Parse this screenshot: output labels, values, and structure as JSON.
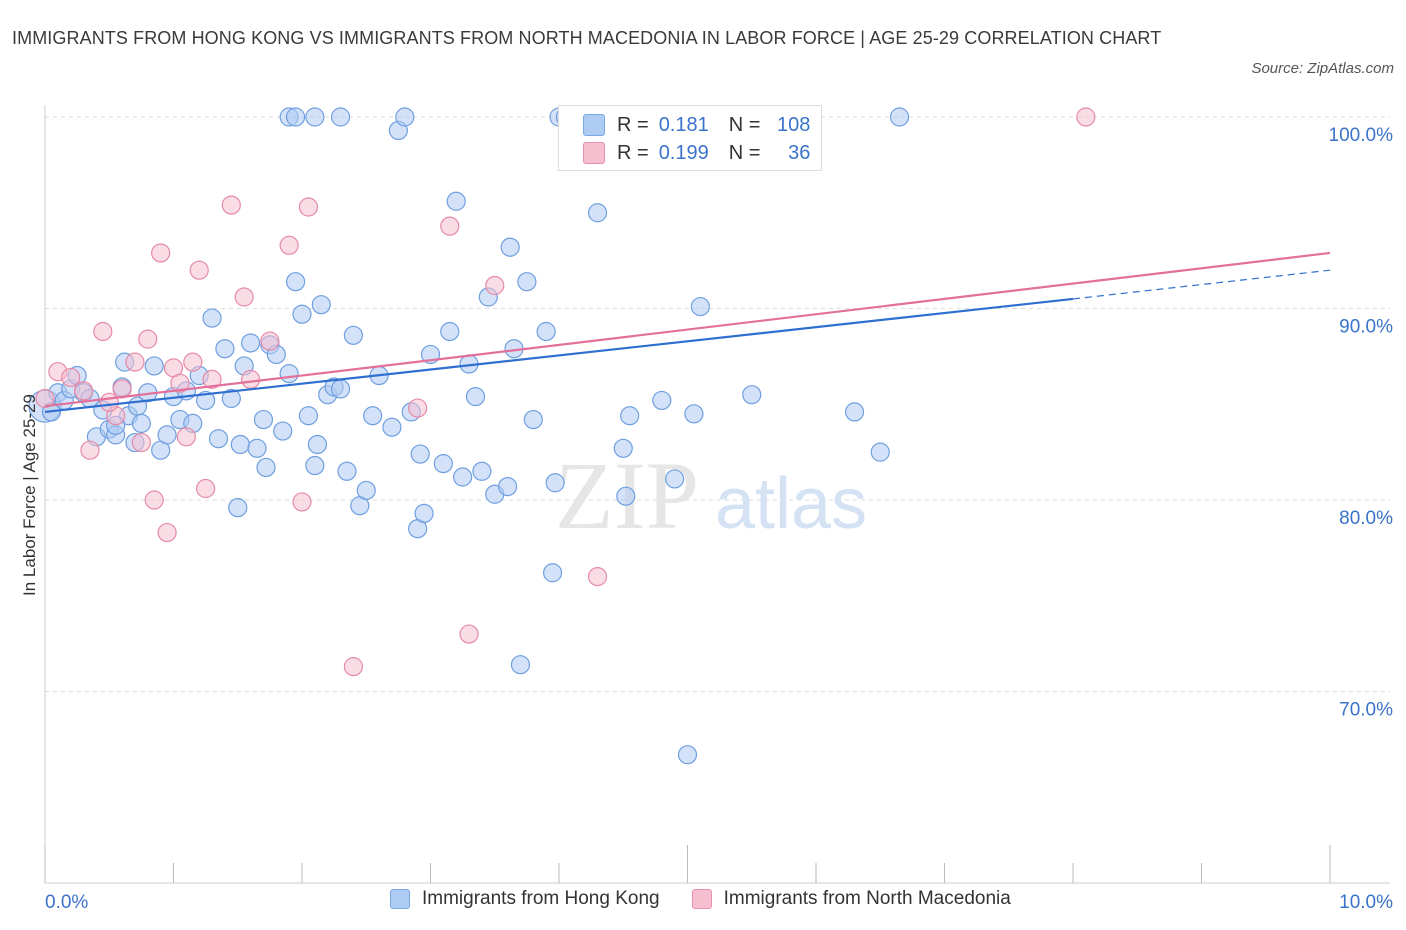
{
  "title": "IMMIGRANTS FROM HONG KONG VS IMMIGRANTS FROM NORTH MACEDONIA IN LABOR FORCE | AGE 25-29 CORRELATION CHART",
  "source": "Source: ZipAtlas.com",
  "watermark": {
    "zip": "ZIP",
    "atlas": "atlas"
  },
  "stats": [
    {
      "r_label": "R =",
      "r_value": "0.181",
      "n_label": "N =",
      "n_value": "108",
      "color": "#aecbf3",
      "border": "#7aa7e6"
    },
    {
      "r_label": "R =",
      "r_value": "0.199",
      "n_label": "N =",
      "n_value": "36",
      "color": "#f6bfcf",
      "border": "#e890ad"
    }
  ],
  "chart_data": {
    "type": "scatter",
    "title": "IMMIGRANTS FROM HONG KONG VS IMMIGRANTS FROM NORTH MACEDONIA IN LABOR FORCE | AGE 25-29 CORRELATION CHART",
    "xlabel": "",
    "ylabel": "In Labor Force | Age 25-29",
    "xlim": [
      0,
      10
    ],
    "ylim": [
      60,
      100
    ],
    "x_tick_labels": [
      "0.0%",
      "10.0%"
    ],
    "y_ticks": [
      70,
      80,
      90,
      100
    ],
    "y_tick_labels": [
      "70.0%",
      "80.0%",
      "90.0%",
      "100.0%"
    ],
    "grid": true,
    "legend_position": "bottom-center",
    "series": [
      {
        "name": "Immigrants from Hong Kong",
        "color": "#aecbf3",
        "stroke": "#6f9fe0",
        "trend": {
          "x0": 0.0,
          "y0": 84.6,
          "x1": 8.0,
          "y1": 90.5,
          "dash_to": 10.0,
          "dash_y": 92.0,
          "color": "#2f6fd0"
        },
        "points": [
          [
            0.0,
            84.9
          ],
          [
            0.05,
            84.6
          ],
          [
            0.1,
            85.6
          ],
          [
            0.15,
            85.2
          ],
          [
            0.2,
            85.8
          ],
          [
            0.25,
            86.5
          ],
          [
            0.3,
            85.6
          ],
          [
            0.35,
            85.3
          ],
          [
            0.4,
            83.3
          ],
          [
            0.45,
            84.7
          ],
          [
            0.5,
            83.7
          ],
          [
            0.55,
            83.4
          ],
          [
            0.6,
            85.9
          ],
          [
            0.62,
            87.2
          ],
          [
            0.65,
            84.4
          ],
          [
            0.7,
            83.0
          ],
          [
            0.72,
            84.9
          ],
          [
            0.75,
            84.0
          ],
          [
            0.8,
            85.6
          ],
          [
            0.85,
            87.0
          ],
          [
            0.9,
            82.6
          ],
          [
            0.95,
            83.4
          ],
          [
            1.0,
            85.4
          ],
          [
            1.05,
            84.2
          ],
          [
            1.1,
            85.7
          ],
          [
            1.15,
            84.0
          ],
          [
            1.2,
            86.5
          ],
          [
            1.25,
            85.2
          ],
          [
            1.3,
            89.5
          ],
          [
            1.35,
            83.2
          ],
          [
            1.4,
            87.9
          ],
          [
            1.45,
            85.3
          ],
          [
            1.5,
            79.6
          ],
          [
            1.52,
            82.9
          ],
          [
            1.55,
            87.0
          ],
          [
            1.6,
            88.2
          ],
          [
            1.65,
            82.7
          ],
          [
            1.7,
            84.2
          ],
          [
            1.72,
            81.7
          ],
          [
            1.75,
            88.1
          ],
          [
            1.8,
            87.6
          ],
          [
            1.85,
            83.6
          ],
          [
            1.9,
            86.6
          ],
          [
            1.95,
            91.4
          ],
          [
            2.0,
            89.7
          ],
          [
            2.05,
            84.4
          ],
          [
            2.1,
            81.8
          ],
          [
            2.12,
            82.9
          ],
          [
            2.15,
            90.2
          ],
          [
            2.2,
            85.5
          ],
          [
            2.25,
            85.9
          ],
          [
            2.3,
            85.8
          ],
          [
            2.35,
            81.5
          ],
          [
            2.4,
            88.6
          ],
          [
            2.45,
            79.7
          ],
          [
            2.5,
            80.5
          ],
          [
            2.55,
            84.4
          ],
          [
            2.6,
            86.5
          ],
          [
            2.7,
            83.8
          ],
          [
            2.75,
            99.3
          ],
          [
            2.8,
            100.0
          ],
          [
            2.85,
            84.6
          ],
          [
            2.9,
            78.5
          ],
          [
            2.92,
            82.4
          ],
          [
            2.95,
            79.3
          ],
          [
            3.0,
            87.6
          ],
          [
            3.1,
            81.9
          ],
          [
            3.15,
            88.8
          ],
          [
            3.2,
            95.6
          ],
          [
            3.25,
            81.2
          ],
          [
            3.3,
            87.1
          ],
          [
            3.35,
            85.4
          ],
          [
            3.4,
            81.5
          ],
          [
            3.45,
            90.6
          ],
          [
            3.5,
            80.3
          ],
          [
            3.6,
            80.7
          ],
          [
            3.62,
            93.2
          ],
          [
            3.65,
            87.9
          ],
          [
            3.7,
            71.4
          ],
          [
            3.75,
            91.4
          ],
          [
            3.8,
            84.2
          ],
          [
            3.9,
            88.8
          ],
          [
            3.95,
            76.2
          ],
          [
            3.97,
            80.9
          ],
          [
            4.0,
            100.0
          ],
          [
            4.05,
            100.0
          ],
          [
            4.3,
            95.0
          ],
          [
            4.5,
            82.7
          ],
          [
            4.52,
            80.2
          ],
          [
            4.55,
            84.4
          ],
          [
            4.8,
            85.2
          ],
          [
            4.9,
            81.1
          ],
          [
            5.0,
            66.7
          ],
          [
            5.05,
            84.5
          ],
          [
            5.1,
            90.1
          ],
          [
            5.5,
            85.5
          ],
          [
            6.3,
            84.6
          ],
          [
            6.5,
            82.5
          ],
          [
            6.65,
            100.0
          ],
          [
            1.9,
            100.0
          ],
          [
            2.1,
            100.0
          ],
          [
            2.3,
            100.0
          ],
          [
            4.4,
            100.0
          ],
          [
            5.1,
            100.0
          ],
          [
            4.95,
            100.0
          ],
          [
            1.95,
            100.0
          ],
          [
            0.55,
            83.9
          ]
        ]
      },
      {
        "name": "Immigrants from North Macedonia",
        "color": "#f6bfcf",
        "stroke": "#e58aa8",
        "trend": {
          "x0": 0.0,
          "y0": 84.9,
          "x1": 10.0,
          "y1": 92.9,
          "color": "#e2709a"
        },
        "points": [
          [
            0.0,
            85.3
          ],
          [
            0.1,
            86.7
          ],
          [
            0.2,
            86.4
          ],
          [
            0.3,
            85.7
          ],
          [
            0.35,
            82.6
          ],
          [
            0.45,
            88.8
          ],
          [
            0.55,
            84.4
          ],
          [
            0.6,
            85.8
          ],
          [
            0.7,
            87.2
          ],
          [
            0.75,
            83.0
          ],
          [
            0.8,
            88.4
          ],
          [
            0.85,
            80.0
          ],
          [
            0.9,
            92.9
          ],
          [
            0.95,
            78.3
          ],
          [
            1.0,
            86.9
          ],
          [
            1.05,
            86.1
          ],
          [
            1.1,
            83.3
          ],
          [
            1.2,
            92.0
          ],
          [
            1.25,
            80.6
          ],
          [
            1.3,
            86.3
          ],
          [
            1.45,
            95.4
          ],
          [
            1.55,
            90.6
          ],
          [
            1.75,
            88.3
          ],
          [
            1.9,
            93.3
          ],
          [
            2.0,
            79.9
          ],
          [
            2.05,
            95.3
          ],
          [
            2.4,
            71.3
          ],
          [
            2.9,
            84.8
          ],
          [
            3.15,
            94.3
          ],
          [
            3.3,
            73.0
          ],
          [
            3.5,
            91.2
          ],
          [
            4.3,
            76.0
          ],
          [
            8.1,
            100.0
          ],
          [
            1.15,
            87.2
          ],
          [
            0.5,
            85.1
          ],
          [
            1.6,
            86.3
          ]
        ]
      }
    ]
  }
}
